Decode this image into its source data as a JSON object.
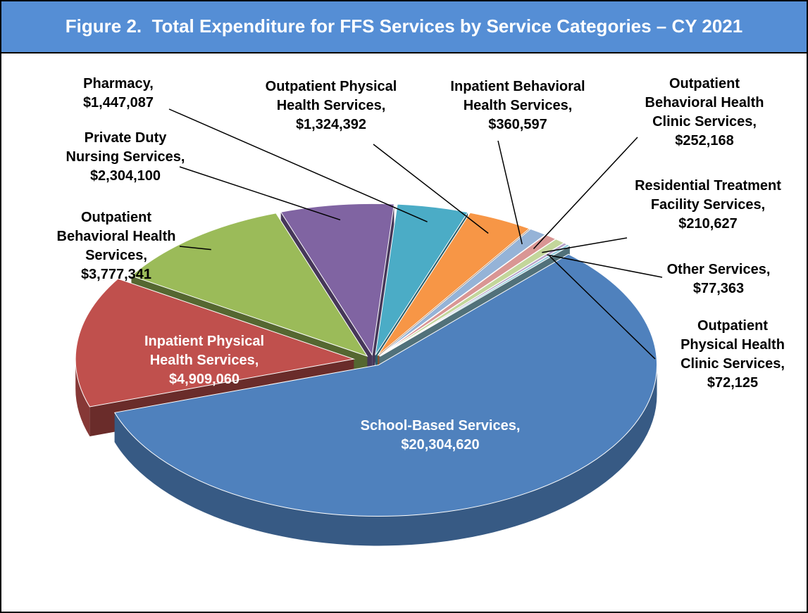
{
  "chart_data": {
    "type": "pie3d",
    "title": "Figure 2.  Total Expenditure for FFS Services by Service Categories – CY 2021",
    "categories": [
      "School-Based Services,",
      "Inpatient Physical Health Services,",
      "Outpatient Behavioral Health Services,",
      "Private Duty Nursing Services,",
      "Pharmacy,",
      "Outpatient Physical Health Services,",
      "Inpatient Behavioral Health Services,",
      "Outpatient Behavioral Health Clinic Services,",
      "Residential Treatment Facility Services,",
      "Other Services,",
      "Outpatient Physical Health Clinic Services,"
    ],
    "values": [
      20304620,
      4909060,
      3777341,
      2304100,
      1447087,
      1324392,
      360597,
      252168,
      210627,
      77363,
      72125
    ],
    "value_labels": [
      "$20,304,620",
      "$4,909,060",
      "$3,777,341",
      "$2,304,100",
      "$1,447,087",
      "$1,324,392",
      "$360,597",
      "$252,168",
      "$210,627",
      "$77,363",
      "$72,125"
    ],
    "colors": [
      "#4f81bd",
      "#c0504d",
      "#9bbb59",
      "#8064a2",
      "#4bacc6",
      "#f79646",
      "#95b3d7",
      "#d99694",
      "#c3d69b",
      "#b3a2c7",
      "#93cddd"
    ]
  }
}
